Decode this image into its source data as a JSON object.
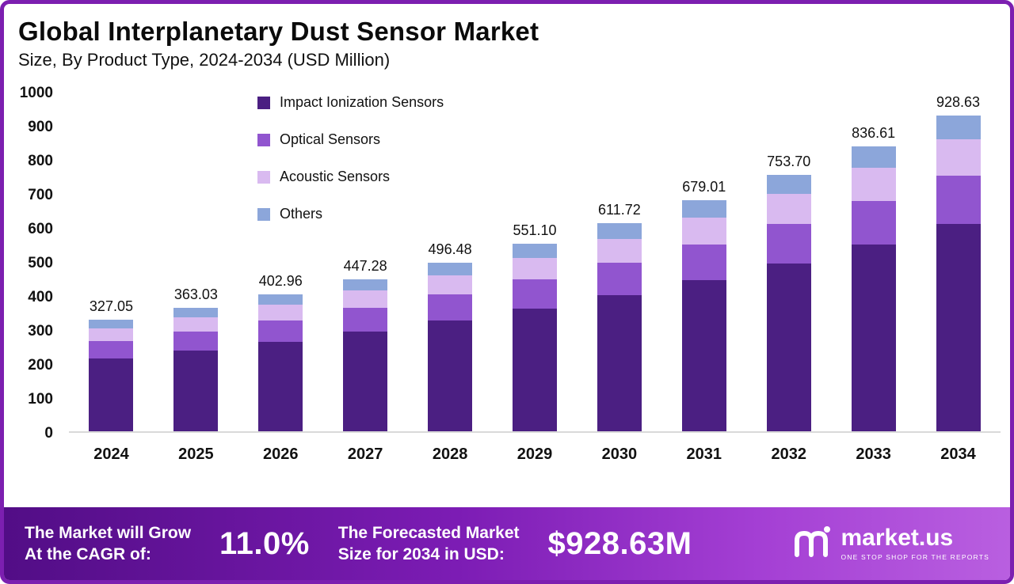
{
  "header": {
    "title": "Global Interplanetary Dust Sensor Market",
    "subtitle": "Size, By Product Type, 2024-2034 (USD Million)"
  },
  "chart_data": {
    "type": "bar",
    "stacked": true,
    "title": "Global Interplanetary Dust Sensor Market Size, By Product Type, 2024-2034 (USD Million)",
    "categories": [
      "2024",
      "2025",
      "2026",
      "2027",
      "2028",
      "2029",
      "2030",
      "2031",
      "2032",
      "2033",
      "2034"
    ],
    "series": [
      {
        "name": "Impact Ionization Sensors",
        "color": "#4b1f82",
        "values": [
          214.2,
          237.8,
          263.9,
          293.0,
          325.2,
          361.0,
          400.7,
          444.8,
          493.7,
          548.0,
          608.3
        ]
      },
      {
        "name": "Optical Sensors",
        "color": "#9155cf",
        "values": [
          50.7,
          56.3,
          62.5,
          69.3,
          77.0,
          85.4,
          94.8,
          105.2,
          116.8,
          129.7,
          143.9
        ]
      },
      {
        "name": "Acoustic Sensors",
        "color": "#d9baf0",
        "values": [
          37.6,
          41.7,
          46.3,
          51.4,
          57.1,
          63.4,
          70.3,
          78.1,
          86.7,
          96.2,
          106.8
        ]
      },
      {
        "name": "Others",
        "color": "#8ca6da",
        "values": [
          24.5,
          27.2,
          30.2,
          33.5,
          37.2,
          41.3,
          45.9,
          50.9,
          56.5,
          62.7,
          69.6
        ]
      }
    ],
    "totals": [
      "327.05",
      "363.03",
      "402.96",
      "447.28",
      "496.48",
      "551.10",
      "611.72",
      "679.01",
      "753.70",
      "836.61",
      "928.63"
    ],
    "ylim": [
      0,
      1000
    ],
    "yticks": [
      0,
      100,
      200,
      300,
      400,
      500,
      600,
      700,
      800,
      900,
      1000
    ],
    "legend_position": "top-left-inside",
    "grid": false
  },
  "footer": {
    "cagr_label_line1": "The Market will Grow",
    "cagr_label_line2": "At the CAGR of:",
    "cagr_value": "11.0%",
    "forecast_label_line1": "The Forecasted Market",
    "forecast_label_line2": "Size for 2034 in USD:",
    "forecast_value": "$928.63M",
    "brand_name": "market.us",
    "brand_tagline": "ONE STOP SHOP FOR THE REPORTS"
  }
}
